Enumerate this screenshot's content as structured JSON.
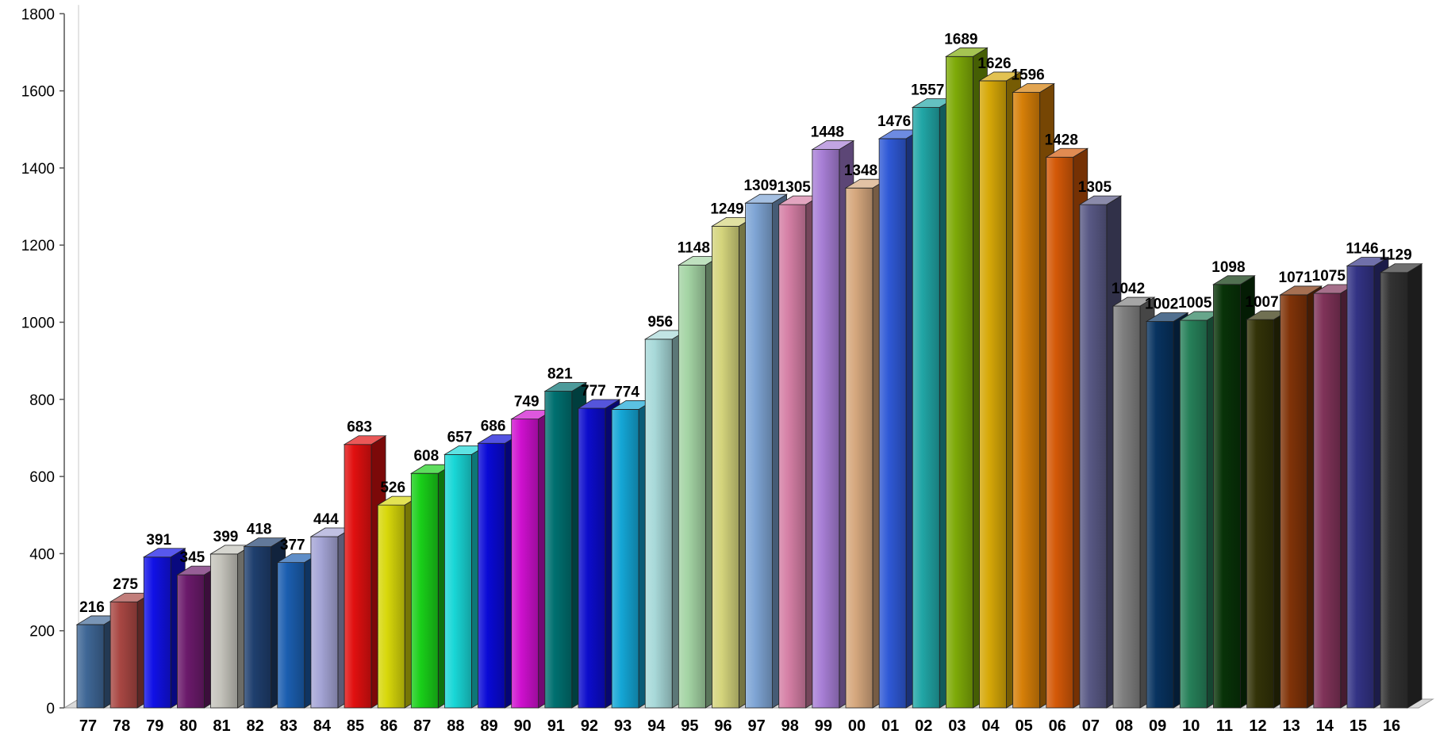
{
  "chart_data": {
    "type": "bar",
    "title": "",
    "xlabel": "",
    "ylabel": "",
    "ylim": [
      0,
      1800
    ],
    "yticks": [
      0,
      200,
      400,
      600,
      800,
      1000,
      1200,
      1400,
      1600,
      1800
    ],
    "grid": false,
    "legend": "none",
    "categories": [
      "77",
      "78",
      "79",
      "80",
      "81",
      "82",
      "83",
      "84",
      "85",
      "86",
      "87",
      "88",
      "89",
      "90",
      "91",
      "92",
      "93",
      "94",
      "95",
      "96",
      "97",
      "98",
      "99",
      "00",
      "01",
      "02",
      "03",
      "04",
      "05",
      "06",
      "07",
      "08",
      "09",
      "10",
      "11",
      "12",
      "13",
      "14",
      "15",
      "16"
    ],
    "values": [
      216,
      275,
      391,
      345,
      399,
      418,
      377,
      444,
      683,
      526,
      608,
      657,
      686,
      749,
      821,
      777,
      774,
      956,
      1148,
      1249,
      1309,
      1305,
      1448,
      1348,
      1476,
      1557,
      1689,
      1626,
      1596,
      1428,
      1305,
      1042,
      1002,
      1005,
      1098,
      1007,
      1071,
      1075,
      1146,
      1129
    ],
    "bar_colors": [
      "#3f6796",
      "#a84743",
      "#1111e6",
      "#6b1a6b",
      "#c5c4bc",
      "#1f3f6e",
      "#1b5eb0",
      "#a5a5d6",
      "#e11010",
      "#d7d70a",
      "#19cf19",
      "#19d7d7",
      "#0909d6",
      "#cf10cf",
      "#007070",
      "#0c0ccc",
      "#14a6d6",
      "#a8d9d9",
      "#a4d4a4",
      "#d4d47c",
      "#7fa5d5",
      "#d57fa5",
      "#a87fd6",
      "#d6a87e",
      "#2f59d6",
      "#21a6a6",
      "#7eaa08",
      "#d6a808",
      "#d67f08",
      "#d45908",
      "#595985",
      "#808080",
      "#083360",
      "#268059",
      "#083308",
      "#333308",
      "#803308",
      "#803359",
      "#333385",
      "#333333"
    ]
  }
}
